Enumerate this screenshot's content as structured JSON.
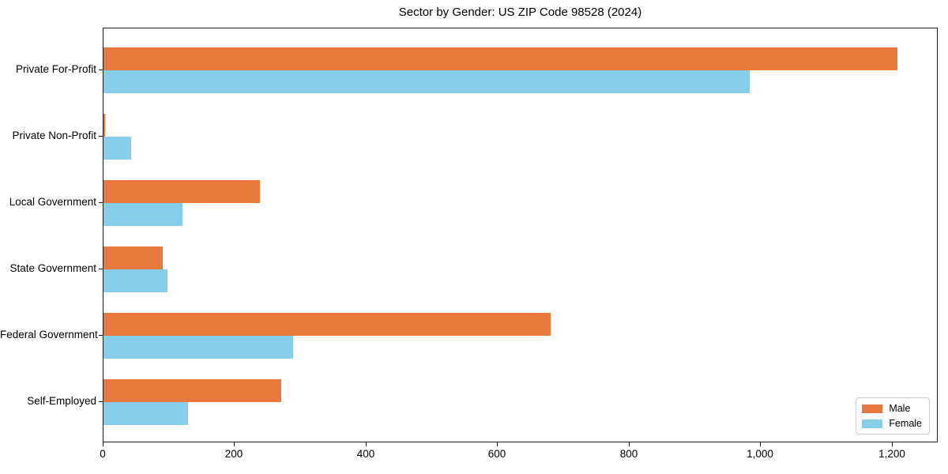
{
  "title": "Sector by Gender: US ZIP Code 98528 (2024)",
  "colors": {
    "male": "#E8793D",
    "female": "#87CEEB",
    "axis": "#1a1a1a",
    "legend_border": "#cccccc",
    "background": "#ffffff"
  },
  "chart_data": {
    "type": "bar",
    "orientation": "horizontal",
    "title": "Sector by Gender: US ZIP Code 98528 (2024)",
    "xlabel": "",
    "ylabel": "",
    "categories": [
      "Private For-Profit",
      "Private Non-Profit",
      "Local Government",
      "State Government",
      "Federal Government",
      "Self-Employed"
    ],
    "series": [
      {
        "name": "Male",
        "color": "#E8793D",
        "values": [
          1208,
          2,
          238,
          90,
          680,
          270
        ]
      },
      {
        "name": "Female",
        "color": "#87CEEB",
        "values": [
          983,
          42,
          120,
          97,
          288,
          129
        ]
      }
    ],
    "xlim": [
      0,
      1270
    ],
    "x_ticks": [
      0,
      200,
      400,
      600,
      800,
      1000,
      1200
    ],
    "x_tick_labels": [
      "0",
      "200",
      "400",
      "600",
      "800",
      "1,000",
      "1,200"
    ],
    "grid": false,
    "legend": {
      "position": "lower right",
      "entries": [
        "Male",
        "Female"
      ]
    }
  }
}
